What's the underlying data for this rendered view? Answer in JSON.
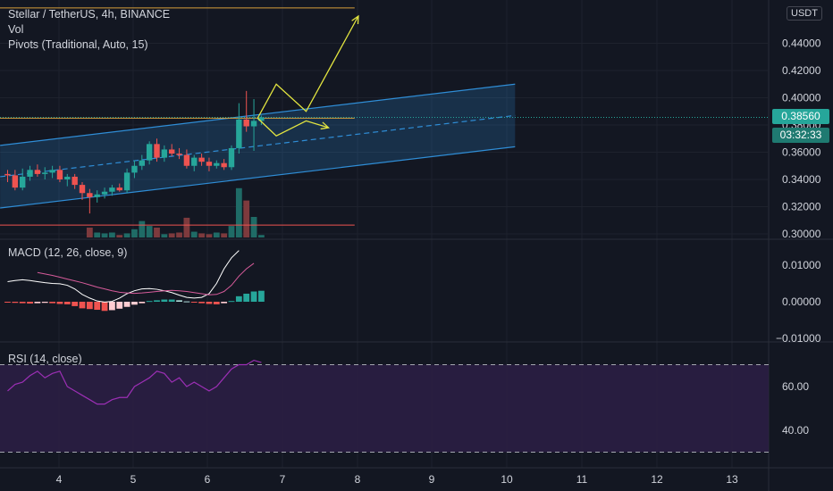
{
  "header": {
    "title": "Stellar / TetherUS, 4h, BINANCE",
    "vol_label": "Vol",
    "pivots_label": "Pivots (Traditional, Auto, 15)",
    "macd_label": "MACD (12, 26, close, 9)",
    "rsi_label": "RSI (14, close)"
  },
  "currency_badge": "USDT",
  "last_price": "0.38560",
  "countdown": "03:32:33",
  "colors": {
    "background": "#131722",
    "up": "#26a69a",
    "down": "#ef5350",
    "channel": "#2f8dd6",
    "drawing": "#e4e640",
    "pivot_top": "#d69e3b",
    "pivot_bottom": "#ef5350",
    "macd_line": "#ffffff",
    "signal_line": "#d65b9a",
    "rsi_line": "#9c2fb5",
    "rsi_band": "#2d1e45"
  },
  "chart_data": [
    {
      "type": "candlestick",
      "title": "Stellar / TetherUS, 4h, BINANCE",
      "x_ticks": [
        "4",
        "5",
        "6",
        "7",
        "8",
        "9",
        "10",
        "11",
        "12",
        "13"
      ],
      "y_ticks": [
        "0.44000",
        "0.42000",
        "0.40000",
        "0.38000",
        "0.36000",
        "0.34000",
        "0.32000",
        "0.30000"
      ],
      "ylim": [
        0.297,
        0.465
      ],
      "candles": [
        {
          "o": 0.344,
          "h": 0.347,
          "l": 0.338,
          "c": 0.343
        },
        {
          "o": 0.343,
          "h": 0.347,
          "l": 0.332,
          "c": 0.334
        },
        {
          "o": 0.334,
          "h": 0.348,
          "l": 0.332,
          "c": 0.342
        },
        {
          "o": 0.342,
          "h": 0.35,
          "l": 0.339,
          "c": 0.347
        },
        {
          "o": 0.347,
          "h": 0.351,
          "l": 0.342,
          "c": 0.344
        },
        {
          "o": 0.344,
          "h": 0.349,
          "l": 0.34,
          "c": 0.345
        },
        {
          "o": 0.345,
          "h": 0.35,
          "l": 0.341,
          "c": 0.347
        },
        {
          "o": 0.347,
          "h": 0.35,
          "l": 0.338,
          "c": 0.34
        },
        {
          "o": 0.34,
          "h": 0.344,
          "l": 0.335,
          "c": 0.342
        },
        {
          "o": 0.342,
          "h": 0.344,
          "l": 0.333,
          "c": 0.336
        },
        {
          "o": 0.336,
          "h": 0.338,
          "l": 0.325,
          "c": 0.33
        },
        {
          "o": 0.33,
          "h": 0.333,
          "l": 0.315,
          "c": 0.327
        },
        {
          "o": 0.327,
          "h": 0.332,
          "l": 0.323,
          "c": 0.329
        },
        {
          "o": 0.329,
          "h": 0.334,
          "l": 0.326,
          "c": 0.331
        },
        {
          "o": 0.331,
          "h": 0.336,
          "l": 0.328,
          "c": 0.334
        },
        {
          "o": 0.334,
          "h": 0.337,
          "l": 0.331,
          "c": 0.332
        },
        {
          "o": 0.332,
          "h": 0.348,
          "l": 0.33,
          "c": 0.345
        },
        {
          "o": 0.345,
          "h": 0.354,
          "l": 0.341,
          "c": 0.35
        },
        {
          "o": 0.35,
          "h": 0.358,
          "l": 0.347,
          "c": 0.354
        },
        {
          "o": 0.354,
          "h": 0.368,
          "l": 0.351,
          "c": 0.366
        },
        {
          "o": 0.366,
          "h": 0.37,
          "l": 0.353,
          "c": 0.356
        },
        {
          "o": 0.356,
          "h": 0.365,
          "l": 0.353,
          "c": 0.362
        },
        {
          "o": 0.362,
          "h": 0.366,
          "l": 0.357,
          "c": 0.359
        },
        {
          "o": 0.359,
          "h": 0.363,
          "l": 0.355,
          "c": 0.358
        },
        {
          "o": 0.358,
          "h": 0.362,
          "l": 0.348,
          "c": 0.35
        },
        {
          "o": 0.35,
          "h": 0.358,
          "l": 0.346,
          "c": 0.356
        },
        {
          "o": 0.356,
          "h": 0.359,
          "l": 0.35,
          "c": 0.353
        },
        {
          "o": 0.353,
          "h": 0.356,
          "l": 0.346,
          "c": 0.35
        },
        {
          "o": 0.35,
          "h": 0.354,
          "l": 0.348,
          "c": 0.352
        },
        {
          "o": 0.352,
          "h": 0.355,
          "l": 0.347,
          "c": 0.349
        },
        {
          "o": 0.349,
          "h": 0.365,
          "l": 0.347,
          "c": 0.363
        },
        {
          "o": 0.363,
          "h": 0.396,
          "l": 0.359,
          "c": 0.384
        },
        {
          "o": 0.384,
          "h": 0.405,
          "l": 0.375,
          "c": 0.379
        },
        {
          "o": 0.379,
          "h": 0.399,
          "l": 0.361,
          "c": 0.383
        },
        {
          "o": 0.383,
          "h": 0.387,
          "l": 0.38,
          "c": 0.3856
        }
      ],
      "volume": [
        0,
        0,
        0,
        0,
        0,
        0,
        0,
        0,
        0,
        0,
        0,
        12,
        6,
        5,
        6,
        3,
        5,
        10,
        20,
        14,
        12,
        4,
        5,
        6,
        24,
        7,
        5,
        4,
        6,
        5,
        14,
        60,
        45,
        25,
        3
      ],
      "pivot_levels": [
        0.466,
        0.385,
        0.3065
      ],
      "channel": {
        "start": {
          "index": -1,
          "upper": 0.365,
          "mid": 0.342,
          "lower": 0.319
        },
        "end": {
          "index": 68,
          "upper": 0.41,
          "mid": 0.387,
          "lower": 0.364
        }
      },
      "drawing_path": [
        [
          33.5,
          0.385
        ],
        [
          36,
          0.41
        ],
        [
          40,
          0.39
        ],
        [
          47,
          0.46
        ]
      ],
      "drawing_path2": [
        [
          33.5,
          0.385
        ],
        [
          36,
          0.372
        ],
        [
          40,
          0.383
        ],
        [
          43,
          0.378
        ]
      ],
      "last_price": 0.3856
    },
    {
      "type": "macd",
      "title": "MACD (12, 26, close, 9)",
      "y_ticks": [
        "0.01000",
        "0.00000",
        "−0.01000"
      ],
      "ylim": [
        -0.0125,
        0.0165
      ],
      "histogram": [
        -0.0002,
        -0.0003,
        -0.0004,
        -0.0005,
        -0.0004,
        -0.0003,
        -0.0004,
        -0.0006,
        -0.0007,
        -0.0012,
        -0.0018,
        -0.002,
        -0.0022,
        -0.0025,
        -0.0023,
        -0.0019,
        -0.0014,
        -0.0008,
        -0.0004,
        0.0002,
        0.0004,
        0.0006,
        0.0006,
        0.0004,
        0.0001,
        -0.0002,
        -0.0004,
        -0.0006,
        -0.0007,
        -0.0004,
        0.0002,
        0.0015,
        0.0022,
        0.0028,
        0.003
      ],
      "macd": [
        0.0055,
        0.0058,
        0.006,
        0.0058,
        0.0055,
        0.0052,
        0.005,
        0.0049,
        0.0045,
        0.0035,
        0.002,
        0.001,
        0.0002,
        -0.0001,
        0.0001,
        0.001,
        0.0022,
        0.003,
        0.0035,
        0.0036,
        0.0034,
        0.003,
        0.0025,
        0.0018,
        0.0012,
        0.001,
        0.0012,
        0.0022,
        0.005,
        0.009,
        0.012,
        0.014
      ],
      "signal": [
        0.008,
        0.0076,
        0.0072,
        0.0067,
        0.0062,
        0.0057,
        0.0052,
        0.0046,
        0.004,
        0.0035,
        0.003,
        0.0026,
        0.0024,
        0.0023,
        0.0024,
        0.0026,
        0.0028,
        0.003,
        0.0031,
        0.003,
        0.0028,
        0.0025,
        0.0022,
        0.0019,
        0.002,
        0.0028,
        0.0045,
        0.007,
        0.009,
        0.0105
      ],
      "macd_start_index": 0,
      "signal_start_index": 4
    },
    {
      "type": "rsi",
      "title": "RSI (14, close)",
      "y_ticks": [
        "60.00",
        "40.00"
      ],
      "ylim": [
        27,
        78
      ],
      "bands": [
        70,
        30
      ],
      "values": [
        58,
        61,
        62,
        65,
        67,
        64,
        66,
        67,
        60,
        58,
        56,
        54,
        52,
        52,
        54,
        55,
        55,
        60,
        62,
        64,
        67,
        66,
        62,
        64,
        60,
        62,
        60,
        58,
        60,
        64,
        68,
        70,
        70,
        72,
        71
      ]
    }
  ]
}
